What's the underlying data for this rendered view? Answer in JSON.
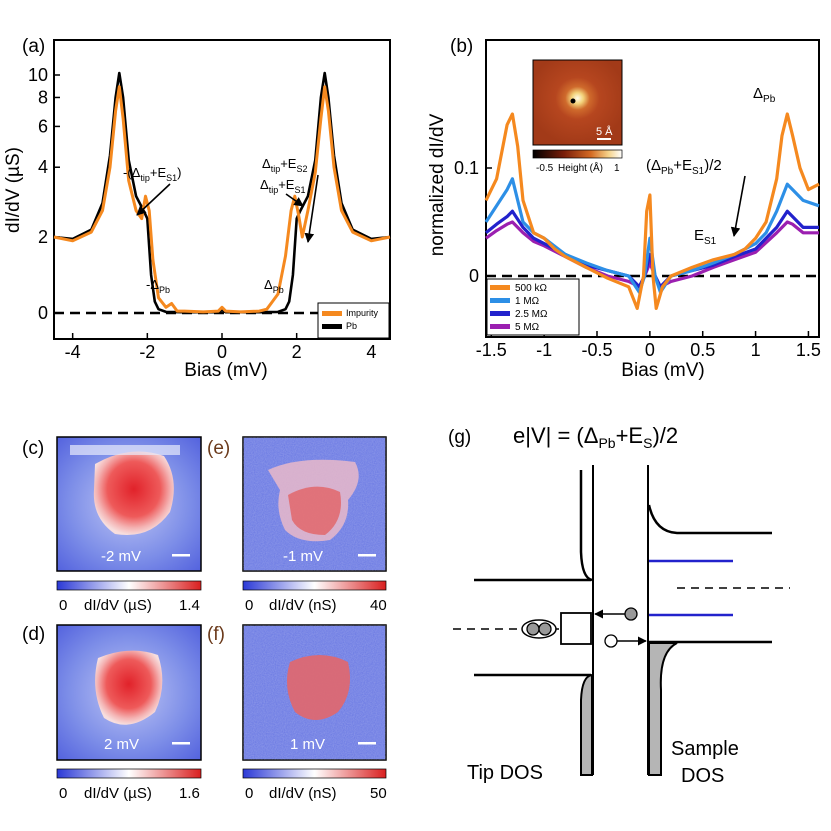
{
  "panel_a": {
    "label": "(a)",
    "ylabel": "dI/dV (µS)",
    "xlabel": "Bias (mV)",
    "xticks": [
      "-4",
      "-2",
      "0",
      "2",
      "4"
    ],
    "yticks": [
      "0",
      "2",
      "4",
      "6",
      "8",
      "10"
    ],
    "legend": [
      "Impurity",
      "Pb"
    ],
    "annotations": {
      "neg_tip_s1_pre": "-(Δ",
      "neg_tip_s1_sub1": "tip",
      "neg_tip_s1_mid": "+E",
      "neg_tip_s1_sub2": "S1",
      "neg_tip_s1_post": ")",
      "tip_s2_main": "Δ",
      "tip_s2_sub1": "tip",
      "tip_s2_mid": "+E",
      "tip_s2_sub2": "S2",
      "tip_s1_main": "Δ",
      "tip_s1_sub1": "tip",
      "tip_s1_mid": "+E",
      "tip_s1_sub2": "S1",
      "neg_pb_main": "-Δ",
      "neg_pb_sub": "Pb",
      "pb_main": "Δ",
      "pb_sub": "Pb"
    },
    "colors": {
      "impurity": "#f5891f",
      "pb": "#000000"
    }
  },
  "panel_b": {
    "label": "(b)",
    "ylabel": "normalized dI/dV",
    "xlabel": "Bias (mV)",
    "xticks": [
      "-1.5",
      "-1",
      "-0.5",
      "0",
      "0.5",
      "1",
      "1.5"
    ],
    "yticks": [
      "0",
      "0.1"
    ],
    "legend": [
      "500 kΩ",
      "1 MΩ",
      "2.5 MΩ",
      "5 MΩ"
    ],
    "colors": [
      "#f5891f",
      "#2d8fe6",
      "#2222cc",
      "#9b1fb0"
    ],
    "annotations": {
      "pb_main": "Δ",
      "pb_sub": "Pb",
      "half_pre": "(Δ",
      "half_sub1": "Pb",
      "half_mid": "+E",
      "half_sub2": "S1",
      "half_post": ")/2",
      "es1_main": "E",
      "es1_sub": "S1"
    },
    "inset": {
      "scale": "5 Å",
      "cbar_min": "-0.5",
      "cbar_label": "Height (Å)",
      "cbar_max": "1"
    }
  },
  "maps": [
    {
      "label": "(c)",
      "bias": "-2 mV",
      "cbar_min": "0",
      "cbar_label": "dI/dV (µS)",
      "cbar_max": "1.4"
    },
    {
      "label": "(e)",
      "bias": "-1 mV",
      "cbar_min": "0",
      "cbar_label": "dI/dV (nS)",
      "cbar_max": "40"
    },
    {
      "label": "(d)",
      "bias": "2 mV",
      "cbar_min": "0",
      "cbar_label": "dI/dV (µS)",
      "cbar_max": "1.6"
    },
    {
      "label": "(f)",
      "bias": "1 mV",
      "cbar_min": "0",
      "cbar_label": "dI/dV (nS)",
      "cbar_max": "50"
    }
  ],
  "panel_g": {
    "label": "(g)",
    "eq_pre": "e|V| = (Δ",
    "eq_sub1": "Pb",
    "eq_mid": "+E",
    "eq_sub2": "S",
    "eq_post": ")/2",
    "tip_label": "Tip DOS",
    "sample_label_1": "Sample",
    "sample_label_2": "DOS"
  },
  "chart_data": [
    {
      "type": "line",
      "title": "",
      "xlabel": "Bias (mV)",
      "ylabel": "dI/dV (µS)",
      "xlim": [
        -4.5,
        4.5
      ],
      "series": [
        {
          "name": "Impurity",
          "x": [
            -4.5,
            -4,
            -3.5,
            -3.2,
            -3.0,
            -2.85,
            -2.75,
            -2.65,
            -2.5,
            -2.3,
            -2.15,
            -2.05,
            -1.95,
            -1.85,
            -1.7,
            -1.5,
            -1.35,
            -1.2,
            -1.0,
            -0.5,
            -0.1,
            0,
            0.1,
            0.5,
            1.0,
            1.2,
            1.35,
            1.5,
            1.7,
            1.85,
            1.95,
            2.05,
            2.15,
            2.3,
            2.5,
            2.65,
            2.75,
            2.85,
            3.0,
            3.2,
            3.5,
            4,
            4.5
          ],
          "y": [
            2.0,
            1.9,
            2.1,
            2.6,
            4.0,
            7.0,
            8.9,
            6.5,
            3.5,
            2.6,
            2.4,
            3.0,
            2.6,
            1.4,
            0.4,
            0.15,
            0.25,
            0.05,
            0.05,
            0.03,
            0.05,
            0.15,
            0.05,
            0.03,
            0.05,
            0.1,
            0.3,
            0.5,
            1.5,
            2.6,
            3.0,
            2.5,
            2.0,
            2.6,
            3.8,
            6.5,
            8.9,
            7.0,
            4.0,
            2.6,
            2.1,
            1.9,
            2.0
          ]
        },
        {
          "name": "Pb",
          "x": [
            -4.5,
            -4,
            -3.5,
            -3.2,
            -3.0,
            -2.85,
            -2.75,
            -2.65,
            -2.5,
            -2.3,
            -2.1,
            -2.0,
            -1.9,
            -1.8,
            -1.7,
            -1.5,
            -1.0,
            -0.5,
            -0.1,
            0,
            0.1,
            0.5,
            1.0,
            1.5,
            1.7,
            1.8,
            1.9,
            2.0,
            2.1,
            2.3,
            2.5,
            2.65,
            2.75,
            2.85,
            3.0,
            3.2,
            3.5,
            4,
            4.5
          ],
          "y": [
            2.0,
            1.95,
            2.15,
            2.8,
            4.5,
            8.0,
            10.2,
            8.0,
            4.3,
            3.0,
            2.6,
            2.4,
            1.0,
            0.3,
            0.1,
            0.03,
            0.02,
            0.02,
            0.02,
            0.08,
            0.02,
            0.02,
            0.02,
            0.03,
            0.1,
            0.3,
            1.0,
            2.4,
            2.6,
            3.0,
            4.3,
            8.0,
            10.2,
            8.0,
            4.5,
            2.8,
            2.15,
            1.95,
            2.0
          ]
        }
      ]
    },
    {
      "type": "line",
      "title": "",
      "xlabel": "Bias (mV)",
      "ylabel": "normalized dI/dV",
      "xlim": [
        -1.55,
        1.6
      ],
      "ylim": [
        -0.05,
        0.18
      ],
      "series": [
        {
          "name": "500 kΩ",
          "x": [
            -1.55,
            -1.45,
            -1.35,
            -1.3,
            -1.25,
            -1.2,
            -1.1,
            -1.0,
            -0.9,
            -0.8,
            -0.6,
            -0.4,
            -0.2,
            -0.12,
            -0.06,
            -0.03,
            0,
            0.03,
            0.06,
            0.12,
            0.2,
            0.4,
            0.6,
            0.8,
            0.9,
            1.0,
            1.1,
            1.2,
            1.25,
            1.3,
            1.35,
            1.42,
            1.5,
            1.6
          ],
          "y": [
            0.07,
            0.09,
            0.14,
            0.15,
            0.12,
            0.07,
            0.04,
            0.035,
            0.025,
            0.018,
            0.008,
            -0.002,
            -0.01,
            -0.03,
            0.0,
            0.06,
            0.075,
            0.0,
            -0.03,
            -0.01,
            0.0,
            0.008,
            0.015,
            0.02,
            0.025,
            0.035,
            0.05,
            0.09,
            0.13,
            0.15,
            0.13,
            0.1,
            0.08,
            0.085
          ]
        },
        {
          "name": "1 MΩ",
          "x": [
            -1.55,
            -1.45,
            -1.35,
            -1.3,
            -1.25,
            -1.2,
            -1.1,
            -1.0,
            -0.8,
            -0.6,
            -0.4,
            -0.2,
            -0.1,
            -0.05,
            0,
            0.05,
            0.1,
            0.2,
            0.4,
            0.6,
            0.8,
            1.0,
            1.1,
            1.2,
            1.3,
            1.35,
            1.45,
            1.6
          ],
          "y": [
            0.05,
            0.065,
            0.08,
            0.09,
            0.07,
            0.05,
            0.04,
            0.035,
            0.02,
            0.012,
            0.005,
            0.0,
            -0.015,
            0.0,
            0.035,
            0.0,
            -0.015,
            0.0,
            0.005,
            0.012,
            0.02,
            0.03,
            0.04,
            0.06,
            0.085,
            0.08,
            0.07,
            0.065
          ]
        },
        {
          "name": "2.5 MΩ",
          "x": [
            -1.55,
            -1.45,
            -1.35,
            -1.3,
            -1.2,
            -1.1,
            -1.0,
            -0.8,
            -0.6,
            -0.4,
            -0.2,
            -0.1,
            -0.05,
            0,
            0.05,
            0.1,
            0.2,
            0.4,
            0.6,
            0.8,
            1.0,
            1.2,
            1.3,
            1.35,
            1.45,
            1.6
          ],
          "y": [
            0.04,
            0.048,
            0.055,
            0.06,
            0.045,
            0.035,
            0.03,
            0.02,
            0.01,
            0.005,
            0.0,
            -0.01,
            0.0,
            0.02,
            0.0,
            -0.01,
            0.0,
            0.005,
            0.01,
            0.018,
            0.025,
            0.045,
            0.06,
            0.055,
            0.045,
            0.045
          ]
        },
        {
          "name": "5 MΩ",
          "x": [
            -1.55,
            -1.45,
            -1.35,
            -1.3,
            -1.2,
            -1.1,
            -1.0,
            -0.8,
            -0.6,
            -0.4,
            -0.2,
            -0.1,
            -0.05,
            0,
            0.05,
            0.1,
            0.2,
            0.4,
            0.6,
            0.8,
            1.0,
            1.2,
            1.3,
            1.35,
            1.45,
            1.6
          ],
          "y": [
            0.035,
            0.042,
            0.048,
            0.05,
            0.04,
            0.032,
            0.028,
            0.018,
            0.008,
            0.0,
            -0.005,
            -0.01,
            0.0,
            0.012,
            0.0,
            -0.01,
            -0.005,
            0.0,
            0.008,
            0.015,
            0.022,
            0.04,
            0.05,
            0.048,
            0.04,
            0.04
          ]
        }
      ]
    }
  ]
}
